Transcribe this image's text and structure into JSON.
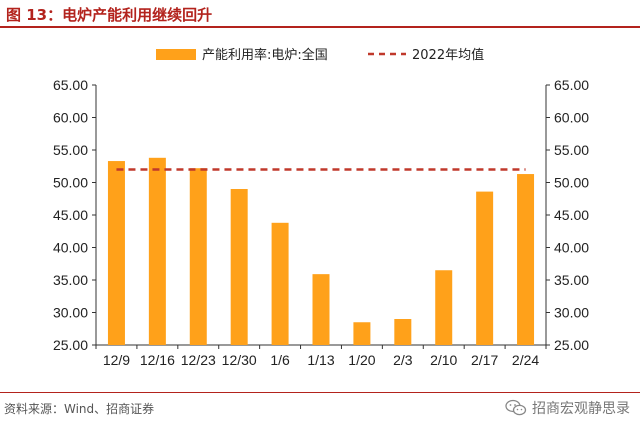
{
  "figure": {
    "title": "图 13：电炉产能利用继续回升",
    "source": "资料来源：Wind、招商证券",
    "brand": "招商宏观静思录",
    "brand_icon": "wechat-icon"
  },
  "colors": {
    "bar": "#FFA11A",
    "avg_line": "#C0392B",
    "title": "#B3231D",
    "axis": "#333333"
  },
  "chart_data": {
    "type": "bar",
    "categories": [
      "12/9",
      "12/16",
      "12/23",
      "12/30",
      "1/6",
      "1/13",
      "1/20",
      "2/3",
      "2/10",
      "2/17",
      "2/24"
    ],
    "series": [
      {
        "name": "产能利用率:电炉:全国",
        "type": "bar",
        "values": [
          53.3,
          53.8,
          52.2,
          49.0,
          43.8,
          35.9,
          28.5,
          29.0,
          36.5,
          48.6,
          51.3
        ]
      },
      {
        "name": "2022年均值",
        "type": "line",
        "style": "dashed",
        "value": 52.0
      }
    ],
    "ylim": [
      25,
      65
    ],
    "ytick_labels": [
      "25.00",
      "30.00",
      "35.00",
      "40.00",
      "45.00",
      "50.00",
      "55.00",
      "60.00",
      "65.00"
    ],
    "secondary_axis": true,
    "legend_position": "top-center",
    "grid": false
  }
}
